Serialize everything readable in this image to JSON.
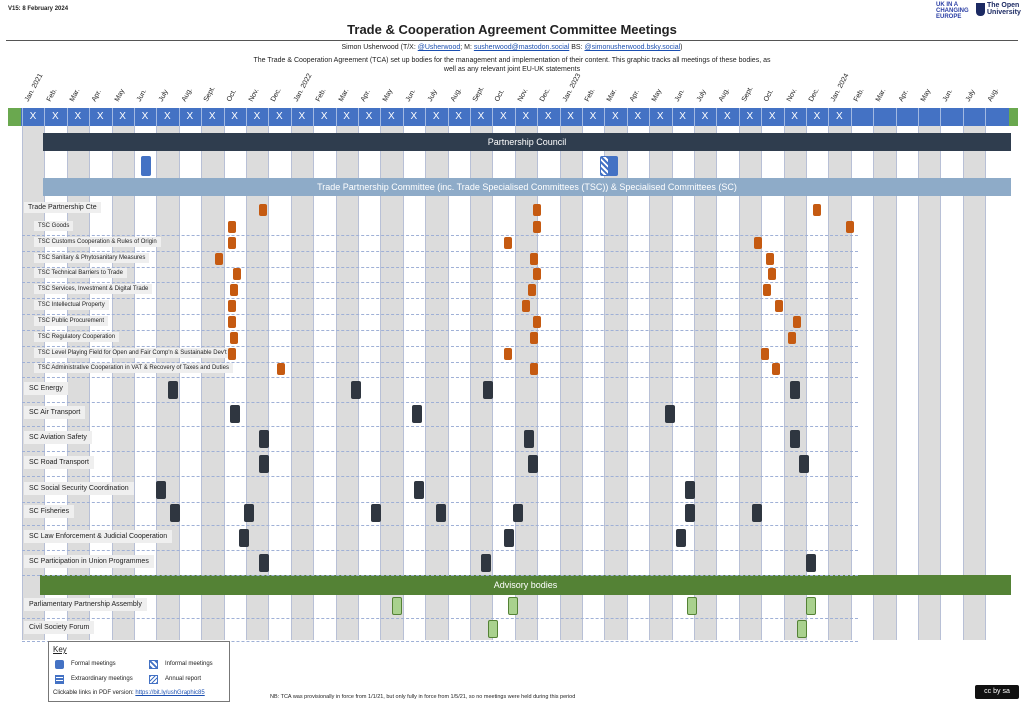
{
  "header": {
    "version": "V15: 8 February 2024",
    "title": "Trade & Cooperation Agreement Committee Meetings",
    "author_prefix": "Simon Usherwood (T/X: ",
    "twitter": "@Usherwood",
    "mastodon_prefix": "; M: ",
    "mastodon": "susherwood@mastodon.social",
    "bluesky_prefix": "  BS: ",
    "bluesky": "@simonusherwood.bsky.social",
    "author_suffix": ")",
    "description": "The Trade & Cooperation Agreement (TCA) set up bodies for the management and implementation of their content. This graphic tracks all meetings of these bodies, as well as any relevant joint EU-UK statements",
    "logo_ukice": "UK IN A CHANGING EUROPE",
    "logo_ou": "The Open University"
  },
  "timeline": {
    "months": [
      "Jan. 2021",
      "Feb.",
      "Mar.",
      "Apr.",
      "May",
      "Jun.",
      "July",
      "Aug.",
      "Sept.",
      "Oct.",
      "Nov.",
      "Dec.",
      "Jan. 2022",
      "Feb.",
      "Mar.",
      "Apr.",
      "May",
      "Jun.",
      "July",
      "Aug.",
      "Sept.",
      "Oct.",
      "Nov.",
      "Dec.",
      "Jan. 2023",
      "Feb.",
      "Mar.",
      "Apr.",
      "May",
      "Jun.",
      "July",
      "Aug.",
      "Sept.",
      "Oct.",
      "Nov.",
      "Dec.",
      "Jan. 2024",
      "Feb.",
      "Mar.",
      "Apr.",
      "May",
      "Jun.",
      "July",
      "Aug."
    ],
    "x_marker": "X",
    "x_count": 37
  },
  "bands": {
    "partnership_council": "Partnership Council",
    "trade_partnership": "Trade Partnership Committee (inc. Trade Specialised Committees (TSC)) & Specialised Committees (SC)",
    "advisory": "Advisory bodies"
  },
  "rows": [
    {
      "label": "Trade Partnership Cte",
      "kind": "tpc",
      "meetings": [
        10.6,
        22.8,
        35.3
      ]
    },
    {
      "label": "TSC Goods",
      "kind": "tsc",
      "meetings": [
        9.2,
        22.8,
        36.8
      ]
    },
    {
      "label": "TSC Customs Cooperation & Rules of Origin",
      "kind": "tsc",
      "meetings": [
        9.2,
        21.5,
        32.7
      ]
    },
    {
      "label": "TSC Sanitary & Phytosanitary Measures",
      "kind": "tsc",
      "meetings": [
        8.6,
        22.7,
        33.2
      ]
    },
    {
      "label": "TSC Technical Barriers to Trade",
      "kind": "tsc",
      "meetings": [
        9.4,
        22.8,
        33.3
      ]
    },
    {
      "label": "TSC Services, Investment & Digital Trade",
      "kind": "tsc",
      "meetings": [
        9.3,
        22.6,
        33.1
      ]
    },
    {
      "label": "TSC Intellectual Property",
      "kind": "tsc",
      "meetings": [
        9.2,
        22.3,
        33.6
      ]
    },
    {
      "label": "TSC Public Procurement",
      "kind": "tsc",
      "meetings": [
        9.2,
        22.8,
        34.4
      ]
    },
    {
      "label": "TSC Regulatory Cooperation",
      "kind": "tsc",
      "meetings": [
        9.3,
        22.7,
        34.2
      ]
    },
    {
      "label": "TSC Level Playing Field for Open and Fair Comp'n & Sustainable Dev't",
      "kind": "tsc",
      "meetings": [
        9.2,
        21.5,
        33
      ]
    },
    {
      "label": "TSC Administrative Cooperation in VAT & Recovery of Taxes and Duties",
      "kind": "tsc",
      "meetings": [
        11.4,
        22.7,
        33.5
      ]
    },
    {
      "label": "SC Energy",
      "kind": "sc",
      "meetings": [
        6.5,
        14.7,
        20.6,
        34.3
      ]
    },
    {
      "label": "SC Air Transport",
      "kind": "sc",
      "meetings": [
        9.3,
        17.4,
        28.7
      ]
    },
    {
      "label": "SC Aviation Safety",
      "kind": "sc",
      "meetings": [
        10.6,
        22.4,
        34.3
      ]
    },
    {
      "label": "SC Road Transport",
      "kind": "sc",
      "meetings": [
        10.6,
        22.6,
        34.7
      ]
    },
    {
      "label": "SC Social Security Coordination",
      "kind": "sc",
      "meetings": [
        6,
        17.5,
        29.6
      ]
    },
    {
      "label": "SC Fisheries",
      "kind": "sc",
      "meetings": [
        6.6,
        9.9,
        15.6,
        18.5,
        21.9,
        29.6,
        32.6
      ]
    },
    {
      "label": "SC Law Enforcement & Judicial Cooperation",
      "kind": "sc",
      "meetings": [
        9.7,
        21.5,
        29.2
      ]
    },
    {
      "label": "SC Participation in Union Programmes",
      "kind": "sc",
      "meetings": [
        10.6,
        20.5,
        35
      ]
    },
    {
      "label": "Parliamentary Partnership Assembly",
      "kind": "adv",
      "meetings": [
        16.5,
        21.7,
        29.7,
        35
      ]
    },
    {
      "label": "Civil Society Forum",
      "kind": "adv",
      "meetings": [
        20.8,
        34.6
      ]
    }
  ],
  "partnership_council_meetings": [
    {
      "month": 5.3,
      "type": "formal"
    },
    {
      "month": 25.8,
      "type": "informal"
    }
  ],
  "key": {
    "title": "Key",
    "formal": "Formal meetings",
    "informal": "Informal meetings",
    "extraordinary": "Extraordinary meetings",
    "annual": "Annual report",
    "link_prefix": "Clickable links in PDF version: ",
    "link": "https://bit.ly/ushGraphic85"
  },
  "footer": {
    "note": "NB: TCA was provisionally in force from 1/1/21, but only fully in force from 1/5/21, so no meetings were held during this period",
    "license": "cc by sa"
  },
  "colors": {
    "formal": "#4472c4",
    "tsc": "#c55a11",
    "sc": "#2f3640",
    "adv": "#a9d18e",
    "council": "#2f3d4e",
    "tp_band": "#8eabc8",
    "adv_band": "#548235"
  }
}
